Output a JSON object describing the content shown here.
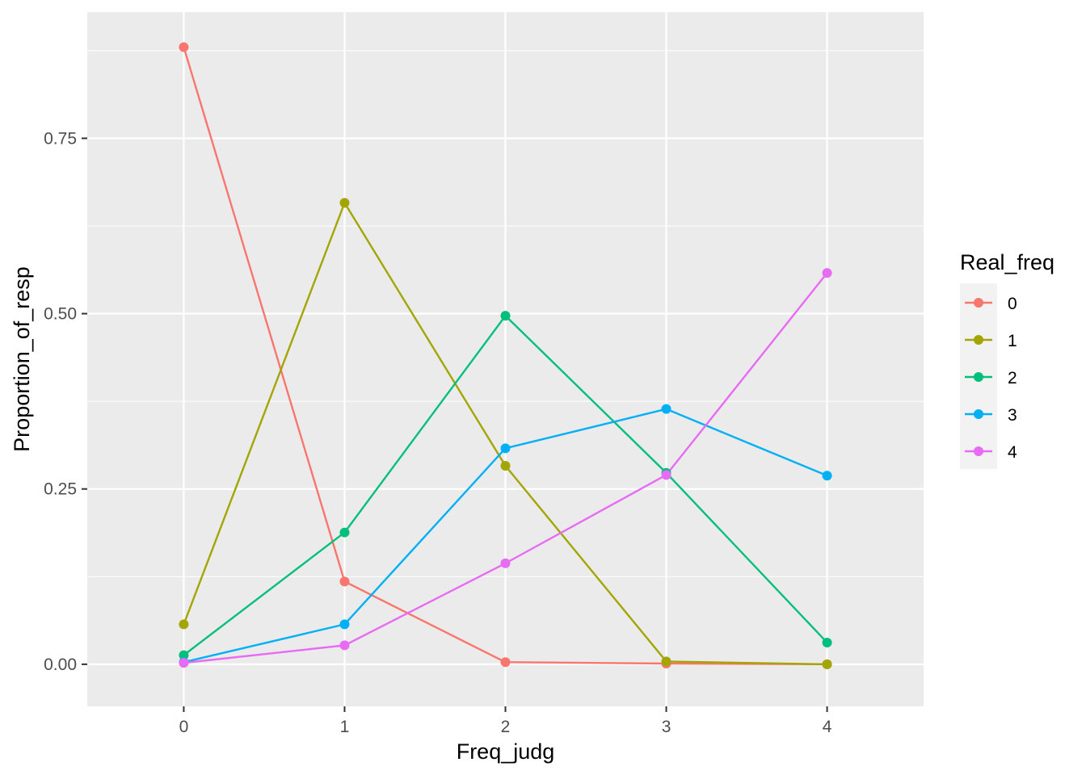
{
  "chart_data": {
    "type": "line",
    "title": "",
    "xlabel": "Freq_judg",
    "ylabel": "Proportion_of_resp",
    "x": [
      0,
      1,
      2,
      3,
      4
    ],
    "xlim": [
      -0.6,
      4.6
    ],
    "ylim": [
      -0.06,
      0.93
    ],
    "x_ticks": [
      0,
      1,
      2,
      3,
      4
    ],
    "x_tick_labels": [
      "0",
      "1",
      "2",
      "3",
      "4"
    ],
    "y_ticks": [
      0,
      0.25,
      0.5,
      0.75
    ],
    "y_tick_labels": [
      "0.00",
      "0.25",
      "0.50",
      "0.75"
    ],
    "grid": true,
    "legend": {
      "title": "Real_freq",
      "position": "right"
    },
    "series": [
      {
        "name": "0",
        "color": "#F8766D",
        "values": [
          0.88,
          0.118,
          0.003,
          0.001,
          0.0
        ]
      },
      {
        "name": "1",
        "color": "#A3A500",
        "values": [
          0.057,
          0.658,
          0.283,
          0.004,
          0.0
        ]
      },
      {
        "name": "2",
        "color": "#00BF7D",
        "values": [
          0.013,
          0.188,
          0.497,
          0.273,
          0.031
        ]
      },
      {
        "name": "3",
        "color": "#00B0F6",
        "values": [
          0.003,
          0.057,
          0.308,
          0.364,
          0.269
        ]
      },
      {
        "name": "4",
        "color": "#E76BF3",
        "values": [
          0.002,
          0.027,
          0.144,
          0.27,
          0.558
        ]
      }
    ]
  }
}
